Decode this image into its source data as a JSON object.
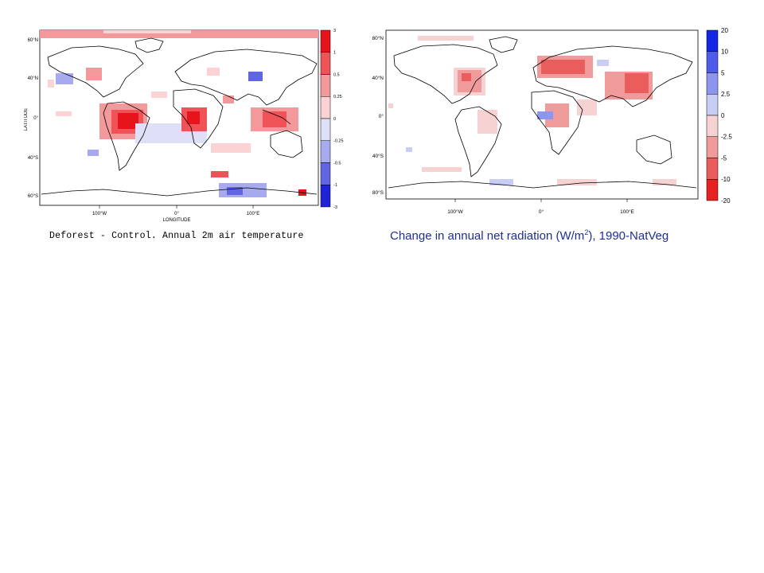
{
  "left_map": {
    "caption": "Deforest - Control. Annual 2m air temperature",
    "y_axis_label": "LATITUDE",
    "x_axis_label": "LONGITUDE",
    "lat_ticks": [
      "60°N",
      "40°N",
      "0°",
      "40°S",
      "60°S"
    ],
    "lon_ticks": [
      "100°W",
      "0°",
      "100°E"
    ],
    "colorbar_labels": [
      "3",
      "1",
      "0.5",
      "0.25",
      "0",
      "-0.25",
      "-0.5",
      "-1",
      "-3"
    ],
    "colorbar_colors": [
      "#e8141c",
      "#ef5358",
      "#f4999b",
      "#fbd3d4",
      "#dde0f7",
      "#a7aaee",
      "#6165e2",
      "#2022d8"
    ]
  },
  "right_map": {
    "caption_prefix": "Change in annual net radiation (W/m",
    "caption_sup": "2",
    "caption_suffix": "), 1990-NatVeg",
    "lat_ticks": [
      "80°N",
      "40°N",
      "0°",
      "40°S",
      "80°S"
    ],
    "lon_ticks": [
      "100°W",
      "0°",
      "100°E"
    ],
    "colorbar_labels": [
      "20",
      "10",
      "5",
      "2.5",
      "0",
      "-2.5",
      "-5",
      "-10",
      "-20"
    ],
    "colorbar_colors": [
      "#1326e6",
      "#4f5ce9",
      "#8d95ee",
      "#c8cdf6",
      "#f7d2d2",
      "#ef9b9b",
      "#ea5d5d",
      "#e62121"
    ]
  }
}
